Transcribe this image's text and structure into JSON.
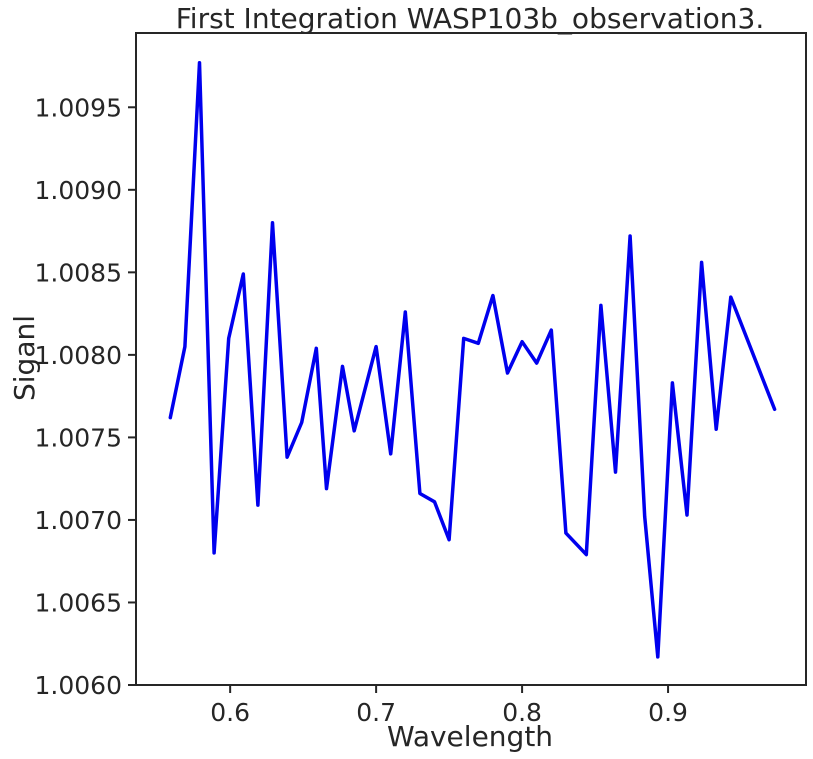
{
  "chart_data": {
    "type": "line",
    "title": "First Integration WASP103b_observation3.",
    "xlabel": "Wavelength",
    "ylabel": "Siganl",
    "xlim": [
      0.5355,
      0.9945
    ],
    "ylim": [
      1.006,
      1.00995
    ],
    "xticks": [
      0.6,
      0.7,
      0.8,
      0.9
    ],
    "xtick_labels": [
      "0.6",
      "0.7",
      "0.8",
      "0.9"
    ],
    "yticks": [
      1.006,
      1.0065,
      1.007,
      1.0075,
      1.008,
      1.0085,
      1.009,
      1.0095
    ],
    "ytick_labels": [
      "1.0060",
      "1.0065",
      "1.0070",
      "1.0075",
      "1.0080",
      "1.0085",
      "1.0090",
      "1.0095"
    ],
    "grid": false,
    "series": [
      {
        "color": "#0000ee",
        "x": [
          0.559,
          0.569,
          0.579,
          0.589,
          0.599,
          0.609,
          0.619,
          0.629,
          0.639,
          0.649,
          0.659,
          0.666,
          0.677,
          0.685,
          0.7,
          0.71,
          0.72,
          0.73,
          0.74,
          0.75,
          0.76,
          0.77,
          0.78,
          0.79,
          0.8,
          0.81,
          0.82,
          0.83,
          0.844,
          0.854,
          0.864,
          0.874,
          0.884,
          0.893,
          0.903,
          0.913,
          0.923,
          0.933,
          0.943,
          0.973
        ],
        "y": [
          1.00762,
          1.00805,
          1.00977,
          1.0068,
          1.0081,
          1.00849,
          1.00709,
          1.0088,
          1.00738,
          1.00759,
          1.00804,
          1.00719,
          1.00793,
          1.00754,
          1.00805,
          1.0074,
          1.00826,
          1.00716,
          1.00711,
          1.00688,
          1.0081,
          1.00807,
          1.00836,
          1.00789,
          1.00808,
          1.00795,
          1.00815,
          1.00692,
          1.00679,
          1.0083,
          1.00729,
          1.00872,
          1.00702,
          1.00617,
          1.00783,
          1.00703,
          1.00856,
          1.00755,
          1.00835,
          1.00767
        ]
      }
    ]
  }
}
